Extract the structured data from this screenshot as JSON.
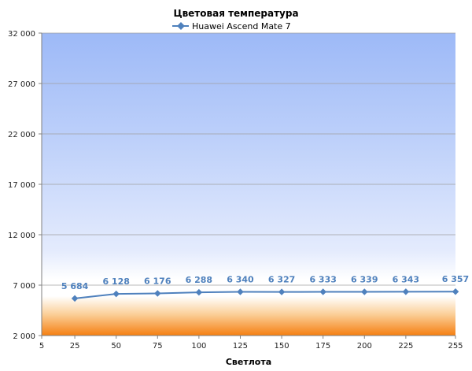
{
  "chart_data": {
    "type": "line",
    "title": "Цветовая температура",
    "xlabel": "Светлота",
    "ylabel": "",
    "legend_position": "top",
    "grid": true,
    "xlim": [
      5,
      255
    ],
    "ylim": [
      2000,
      32000
    ],
    "x_ticks": [
      "5",
      "25",
      "50",
      "75",
      "100",
      "125",
      "150",
      "175",
      "200",
      "225",
      "255"
    ],
    "y_ticks": [
      "2 000",
      "7 000",
      "12 000",
      "17 000",
      "22 000",
      "27 000",
      "32 000"
    ],
    "series": [
      {
        "name": "Huawei Ascend Mate 7",
        "color": "#4f81bd",
        "x": [
          25,
          50,
          75,
          100,
          125,
          150,
          175,
          200,
          225,
          255
        ],
        "values": [
          5684,
          6128,
          6176,
          6288,
          6340,
          6327,
          6333,
          6339,
          6343,
          6357
        ],
        "labels": [
          "5 684",
          "6 128",
          "6 176",
          "6 288",
          "6 340",
          "6 327",
          "6 333",
          "6 339",
          "6 343",
          "6 357"
        ]
      }
    ]
  }
}
